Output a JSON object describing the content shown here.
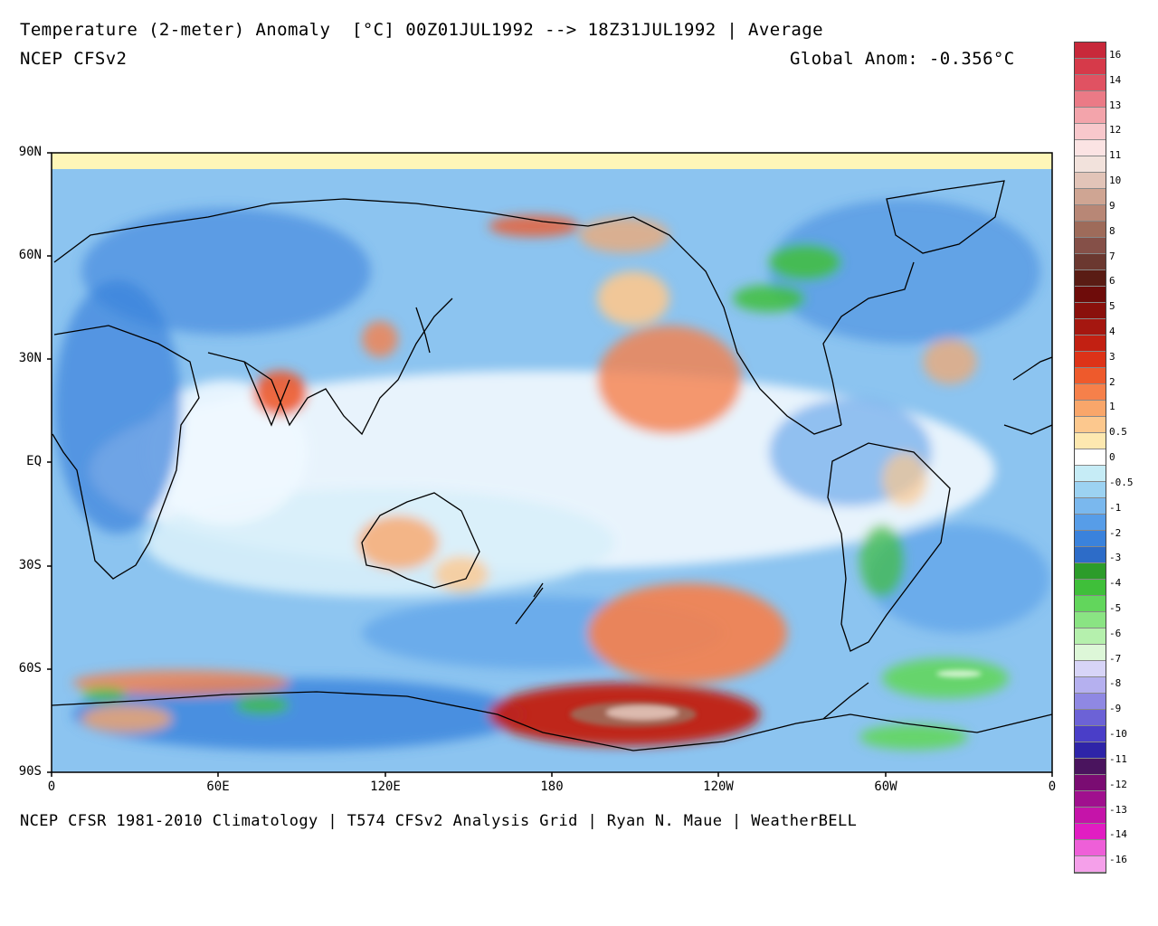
{
  "header": {
    "title": "Temperature (2-meter) Anomaly  [°C] 00Z01JUL1992 --> 18Z31JUL1992 | Average",
    "model": "NCEP CFSv2",
    "global_anom": "Global Anom: -0.356°C"
  },
  "footer": {
    "credit": "NCEP CFSR 1981-2010 Climatology | T574 CFSv2 Analysis Grid | Ryan N. Maue | WeatherBELL"
  },
  "axes": {
    "lat_labels": [
      "90N",
      "60N",
      "30N",
      "EQ",
      "30S",
      "60S",
      "90S"
    ],
    "lon_labels": [
      "0",
      "60E",
      "120E",
      "180",
      "120W",
      "60W",
      "0"
    ]
  },
  "colorbar": {
    "labels": [
      "16",
      "14",
      "13",
      "12",
      "11",
      "10",
      "9",
      "8",
      "7",
      "6",
      "5",
      "4",
      "3",
      "2",
      "1",
      "0.5",
      "0",
      "-0.5",
      "-1",
      "-2",
      "-3",
      "-4",
      "-5",
      "-6",
      "-7",
      "-8",
      "-9",
      "-10",
      "-11",
      "-12",
      "-13",
      "-14",
      "-16"
    ],
    "colors": [
      "#c8283a",
      "#d63a4a",
      "#e05262",
      "#eb7a86",
      "#f3a4ab",
      "#f8c8cc",
      "#fbe3e3",
      "#f2e2dc",
      "#e2c4b8",
      "#cfa593",
      "#b88776",
      "#9e6b5a",
      "#855048",
      "#6b3830",
      "#5a1c14",
      "#6e0c0a",
      "#8a100c",
      "#a51710",
      "#c22012",
      "#dd3318",
      "#ee5a2c",
      "#f6804a",
      "#f9a66a",
      "#fcc88e",
      "#fde8b0",
      "#ffffff",
      "#c6ecf6",
      "#9cd2f2",
      "#7ab8ee",
      "#579de8",
      "#3a82dc",
      "#2d6cc8",
      "#2c9c2a",
      "#3fbf3a",
      "#62d65c",
      "#8ae483",
      "#b5f0ad",
      "#ddf7d8",
      "#d7d4f7",
      "#b5b0ef",
      "#8f88e3",
      "#6c62d6",
      "#4a3ec8",
      "#2e24a8",
      "#4a145e",
      "#7a0c72",
      "#a0108e",
      "#c514a9",
      "#e11dc2",
      "#ee5fd8",
      "#f5a0ea"
    ]
  },
  "map": {
    "arctic_color": "#fff6b8",
    "base_color": "#7fb8ee",
    "contour_color": "#000000"
  }
}
